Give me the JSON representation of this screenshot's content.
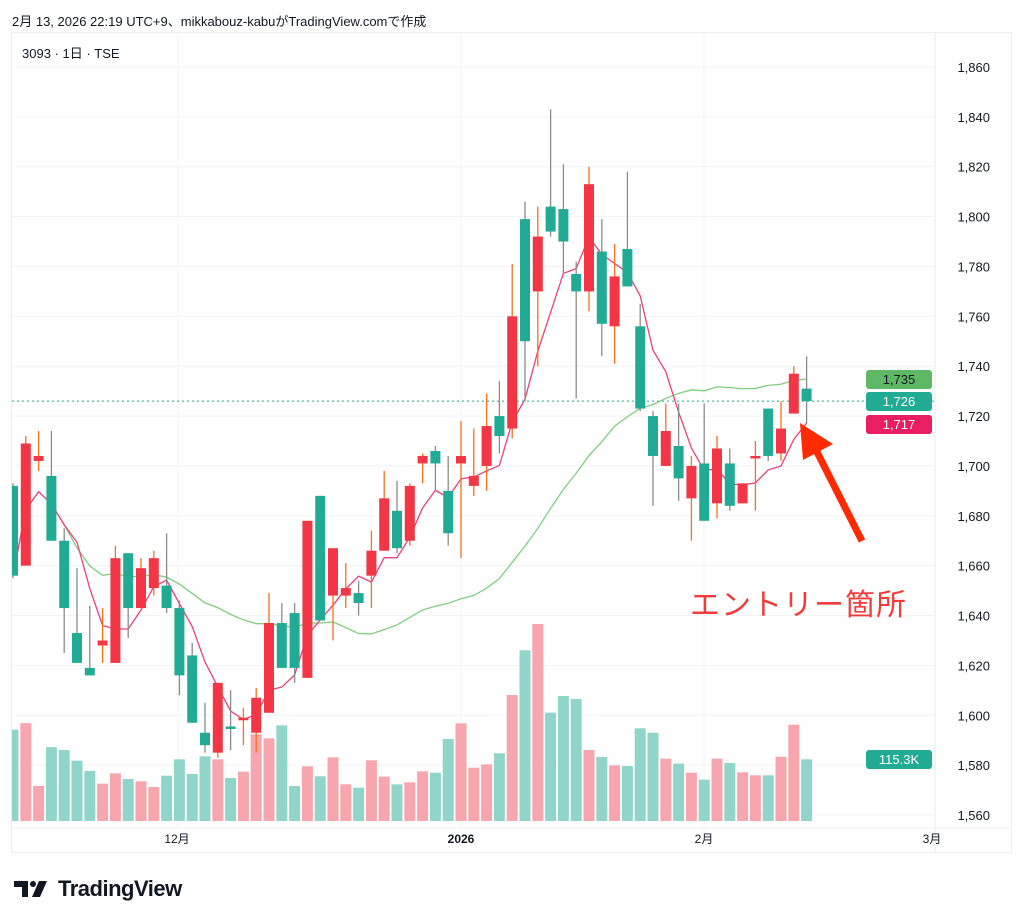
{
  "caption": "2月 13, 2026 22:19 UTC+9、mikkabouz-kabuがTradingView.comで作成",
  "symbol_line": "3093 · 1日 · TSE",
  "annotation": "エントリー箇所",
  "logo_text": "TradingView",
  "colors": {
    "up": "#f23645",
    "down": "#22ab94",
    "up_wick": "#f7701e",
    "down_wick": "#8a8a8a",
    "up_volume": "#f7a6ae",
    "down_volume": "#91d5ca",
    "ma_short": "#ec407a",
    "ma_long": "#7fce7f",
    "arrow": "#ff2a00"
  },
  "price_labels": {
    "ma_long": "1,735",
    "last": "1,726",
    "ma_short": "1,717",
    "volume": "115.3K"
  },
  "chart_data": {
    "type": "candlestick",
    "title": "3093 · 1日 · TSE",
    "up_color_means": "close >= open (red)",
    "ylim": [
      1560,
      1860
    ],
    "yticks": [
      "1,560",
      "1,580",
      "1,600",
      "1,620",
      "1,640",
      "1,660",
      "1,680",
      "1,700",
      "1,720",
      "1,740",
      "1,760",
      "1,780",
      "1,800",
      "1,820",
      "1,840",
      "1,860"
    ],
    "ytick_values": [
      1560,
      1580,
      1600,
      1620,
      1640,
      1660,
      1680,
      1700,
      1720,
      1740,
      1760,
      1780,
      1800,
      1820,
      1840,
      1860
    ],
    "xticks": [
      "12月",
      "2026",
      "2月",
      "3月"
    ],
    "grid": true,
    "ohlc": [
      [
        1692,
        1693,
        1655,
        1656
      ],
      [
        1660,
        1712,
        1660,
        1709
      ],
      [
        1702,
        1714,
        1698,
        1704
      ],
      [
        1696,
        1714,
        1670,
        1670
      ],
      [
        1670,
        1675,
        1625,
        1643
      ],
      [
        1633,
        1659,
        1621,
        1621
      ],
      [
        1619,
        1644,
        1616,
        1616
      ],
      [
        1628,
        1643,
        1621,
        1630
      ],
      [
        1621,
        1668,
        1621,
        1663
      ],
      [
        1665,
        1665,
        1631,
        1643
      ],
      [
        1643,
        1663,
        1643,
        1659
      ],
      [
        1651,
        1666,
        1648,
        1663
      ],
      [
        1652,
        1673,
        1641,
        1643
      ],
      [
        1643,
        1646,
        1608,
        1616
      ],
      [
        1624,
        1629,
        1597,
        1597
      ],
      [
        1593,
        1605,
        1585,
        1588
      ],
      [
        1585,
        1613,
        1583,
        1613
      ],
      [
        1595.5,
        1610,
        1586,
        1594.5
      ],
      [
        1598,
        1603,
        1588,
        1599
      ],
      [
        1593,
        1611,
        1585,
        1607
      ],
      [
        1601,
        1649,
        1601,
        1637
      ],
      [
        1637,
        1645,
        1619,
        1619
      ],
      [
        1641,
        1645,
        1613,
        1619
      ],
      [
        1615,
        1678,
        1615,
        1678
      ],
      [
        1688,
        1688,
        1638,
        1638
      ],
      [
        1648,
        1667,
        1630,
        1667
      ],
      [
        1648,
        1661,
        1643,
        1651
      ],
      [
        1649,
        1654,
        1640,
        1645
      ],
      [
        1656,
        1674,
        1643,
        1666
      ],
      [
        1666,
        1698,
        1666,
        1687
      ],
      [
        1682,
        1694,
        1665,
        1667
      ],
      [
        1670,
        1693,
        1668,
        1692
      ],
      [
        1701,
        1705,
        1693,
        1704
      ],
      [
        1706,
        1708,
        1690,
        1701
      ],
      [
        1690,
        1704,
        1668,
        1673
      ],
      [
        1701,
        1718,
        1663,
        1704
      ],
      [
        1692,
        1715,
        1688,
        1696
      ],
      [
        1700,
        1729,
        1690,
        1716
      ],
      [
        1720,
        1734,
        1705,
        1712
      ],
      [
        1715,
        1781,
        1711,
        1760
      ],
      [
        1799,
        1806,
        1726,
        1750
      ],
      [
        1770,
        1804,
        1740,
        1792
      ],
      [
        1804,
        1843,
        1792,
        1794
      ],
      [
        1803,
        1821,
        1777,
        1790
      ],
      [
        1777,
        1782,
        1727,
        1770
      ],
      [
        1770,
        1820,
        1762,
        1813
      ],
      [
        1786,
        1799,
        1744,
        1757
      ],
      [
        1756,
        1789,
        1741,
        1776
      ],
      [
        1787,
        1818,
        1772,
        1772
      ],
      [
        1756,
        1765,
        1722,
        1723
      ],
      [
        1720,
        1722,
        1684,
        1704
      ],
      [
        1700,
        1725,
        1700,
        1714
      ],
      [
        1708,
        1725,
        1686,
        1695
      ],
      [
        1687,
        1704,
        1670,
        1700
      ],
      [
        1701,
        1725,
        1678,
        1678
      ],
      [
        1685,
        1712,
        1679,
        1707
      ],
      [
        1701,
        1707,
        1682,
        1684
      ],
      [
        1685,
        1693,
        1685,
        1693
      ],
      [
        1703,
        1710,
        1682,
        1704
      ],
      [
        1723,
        1723,
        1702,
        1704
      ],
      [
        1705,
        1726,
        1702,
        1715
      ],
      [
        1721,
        1740,
        1721,
        1737
      ],
      [
        1731,
        1744,
        1717,
        1726
      ]
    ],
    "volume_k": [
      170.7,
      183,
      65.4,
      138,
      132.7,
      112.8,
      93.5,
      69.8,
      89.1,
      78.5,
      74.1,
      63.6,
      84.7,
      115.3,
      87.9,
      120.9,
      115.3,
      80.4,
      92.2,
      162,
      154.5,
      178.8,
      65.4,
      102.2,
      83.5,
      119,
      68.5,
      62.3,
      113.4,
      82.9,
      68.5,
      72.3,
      92.8,
      90.3,
      153.3,
      182.5,
      99.7,
      105.9,
      126.5,
      235.5,
      319,
      368.2,
      202.5,
      233.6,
      228,
      132.7,
      119.6,
      104,
      102.8,
      173.2,
      165,
      116.5,
      107.2,
      90.3,
      77.3,
      116.5,
      108.4,
      91,
      85.4,
      85.4,
      120.2,
      180,
      115.3
    ],
    "moving_averages": [
      {
        "name": "MA short",
        "period": 5
      },
      {
        "name": "MA long",
        "period": 25
      }
    ],
    "last_price": 1726
  }
}
